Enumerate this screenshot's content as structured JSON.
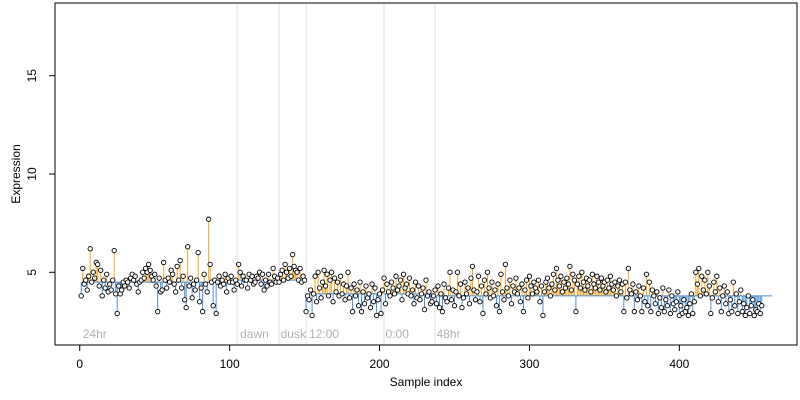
{
  "chart_data": {
    "type": "scatter",
    "title": "",
    "xlabel": "Sample index",
    "ylabel": "Expression",
    "xlim": [
      -16.5,
      478.5
    ],
    "ylim": [
      1.3,
      18.7
    ],
    "x_ticks": [
      0,
      100,
      200,
      300,
      400
    ],
    "y_ticks": [
      5,
      10,
      15
    ],
    "grid": false,
    "legend": "none",
    "colors": {
      "above_stem": "#f5a623",
      "below_stem": "#4a90d9",
      "point_edge": "#000000",
      "point_fill": "#ffffff",
      "divider": "#e0e0e0",
      "annotation": "#b0b0b0"
    },
    "annotations": [
      {
        "label": "24hr",
        "x": 2
      },
      {
        "label": "dawn",
        "x": 107
      },
      {
        "label": "dusk",
        "x": 134
      },
      {
        "label": "12:00",
        "x": 153
      },
      {
        "label": "0:00",
        "x": 204
      },
      {
        "label": "48hr",
        "x": 238
      }
    ],
    "vertical_lines": [
      105,
      133,
      151,
      203,
      237
    ],
    "segments": [
      {
        "start": 1,
        "end": 104,
        "level": 4.5
      },
      {
        "start": 105,
        "end": 132,
        "level": 4.6
      },
      {
        "start": 133,
        "end": 150,
        "level": 4.6
      },
      {
        "start": 151,
        "end": 202,
        "level": 3.9
      },
      {
        "start": 203,
        "end": 236,
        "level": 3.9
      },
      {
        "start": 237,
        "end": 462,
        "level": 3.8
      }
    ],
    "series": [
      {
        "values": [
          3.8,
          5.2,
          4.4,
          4.6,
          4.1,
          4.8,
          6.2,
          4.5,
          5.0,
          4.7,
          5.5,
          5.4,
          4.3,
          5.1,
          3.8,
          4.6,
          4.2,
          4.9,
          4.0,
          4.4,
          4.1,
          4.6,
          6.1,
          3.9,
          2.9,
          4.3,
          3.9,
          4.1,
          4.5,
          4.3,
          4.6,
          4.5,
          4.2,
          4.7,
          4.9,
          4.6,
          4.8,
          4.4,
          4.0,
          4.5,
          4.6,
          5.0,
          4.7,
          5.2,
          5.0,
          5.4,
          5.1,
          4.8,
          4.6,
          4.9,
          4.3,
          3.0,
          4.7,
          4.0,
          4.1,
          5.5,
          4.6,
          4.2,
          4.7,
          4.5,
          5.1,
          4.9,
          4.4,
          4.0,
          5.3,
          4.6,
          5.6,
          4.2,
          4.8,
          3.6,
          3.2,
          6.3,
          4.3,
          4.7,
          3.7,
          4.4,
          4.1,
          4.6,
          6.0,
          3.5,
          4.2,
          3.0,
          4.9,
          4.4,
          4.0,
          7.7,
          5.4,
          4.5,
          3.3,
          4.6,
          2.9,
          4.5,
          4.8,
          4.3,
          4.6,
          4.4,
          4.9,
          4.0,
          4.7,
          4.5,
          4.8,
          4.5,
          4.1,
          4.6,
          4.4,
          5.4,
          5.0,
          4.3,
          4.8,
          4.6,
          4.6,
          4.2,
          4.9,
          4.6,
          4.8,
          4.4,
          4.5,
          4.8,
          4.7,
          5.0,
          4.4,
          4.9,
          4.1,
          4.6,
          4.3,
          4.9,
          4.5,
          4.4,
          5.2,
          4.8,
          4.5,
          4.7,
          4.5,
          4.9,
          5.1,
          4.6,
          5.4,
          5.0,
          4.7,
          5.2,
          4.8,
          5.9,
          5.3,
          5.1,
          5.0,
          4.6,
          5.2,
          4.5,
          4.8,
          4.6,
          3.0,
          3.8,
          3.6,
          4.1,
          2.8,
          3.9,
          4.8,
          3.5,
          5.0,
          4.2,
          3.7,
          4.5,
          5.1,
          4.3,
          4.9,
          3.8,
          4.6,
          5.0,
          3.5,
          4.7,
          4.0,
          4.5,
          3.8,
          4.8,
          3.9,
          4.4,
          3.6,
          4.3,
          5.0,
          3.7,
          4.2,
          3.0,
          4.4,
          3.8,
          4.1,
          3.3,
          4.5,
          3.0,
          4.0,
          3.4,
          4.3,
          3.7,
          3.9,
          3.2,
          4.4,
          3.5,
          4.2,
          2.8,
          3.6,
          3.9,
          2.9,
          4.1,
          4.7,
          3.4,
          4.4,
          4.0,
          3.8,
          4.5,
          4.2,
          3.9,
          4.8,
          4.1,
          4.3,
          4.6,
          3.6,
          4.9,
          4.2,
          4.4,
          3.9,
          4.7,
          3.8,
          4.1,
          3.4,
          4.5,
          3.7,
          4.3,
          3.6,
          3.9,
          4.2,
          3.1,
          4.6,
          3.8,
          4.0,
          3.4,
          3.5,
          3.8,
          4.1,
          3.4,
          4.3,
          3.2,
          3.9,
          3.0,
          4.4,
          3.7,
          3.5,
          4.2,
          5.0,
          3.6,
          4.1,
          3.3,
          4.0,
          5.0,
          3.8,
          4.4,
          3.2,
          3.7,
          4.5,
          3.9,
          4.2,
          3.4,
          4.7,
          5.3,
          4.1,
          3.6,
          4.0,
          4.8,
          3.5,
          4.3,
          2.9,
          4.6,
          3.9,
          5.0,
          4.2,
          3.7,
          4.5,
          3.8,
          4.1,
          3.3,
          4.4,
          3.0,
          4.9,
          4.0,
          3.6,
          5.4,
          4.2,
          3.8,
          4.6,
          3.4,
          4.3,
          4.0,
          4.7,
          3.9,
          4.2,
          3.5,
          4.4,
          3.0,
          4.1,
          4.6,
          3.7,
          4.8,
          4.3,
          3.9,
          4.5,
          4.2,
          4.0,
          4.6,
          3.5,
          4.3,
          2.8,
          4.0,
          4.5,
          4.7,
          4.2,
          3.8,
          4.4,
          4.9,
          4.1,
          5.2,
          4.6,
          4.3,
          4.8,
          4.0,
          4.5,
          4.2,
          4.7,
          4.4,
          5.3,
          4.1,
          4.9,
          4.6,
          3.0,
          4.4,
          4.8,
          4.2,
          5.0,
          4.5,
          4.1,
          4.7,
          4.3,
          4.6,
          4.0,
          4.9,
          4.4,
          4.2,
          4.8,
          4.5,
          4.1,
          4.7,
          4.3,
          4.5,
          4.0,
          4.6,
          4.2,
          4.8,
          4.4,
          4.1,
          4.5,
          3.8,
          4.3,
          4.6,
          4.0,
          4.4,
          3.0,
          4.5,
          3.7,
          5.2,
          4.1,
          3.9,
          4.4,
          3.0,
          4.0,
          3.6,
          4.3,
          3.8,
          3.0,
          4.2,
          3.5,
          4.9,
          3.3,
          4.5,
          3.0,
          4.1,
          3.8,
          3.4,
          4.0,
          2.9,
          3.7,
          3.2,
          4.2,
          3.0,
          3.6,
          3.3,
          4.1,
          2.9,
          3.8,
          3.4,
          3.1,
          3.5,
          4.0,
          2.8,
          3.3,
          2.9,
          3.6,
          3.0,
          3.2,
          2.8,
          3.4,
          3.9,
          2.9,
          3.5,
          5.0,
          4.4,
          5.2,
          3.8,
          4.8,
          4.1,
          4.6,
          3.9,
          5.0,
          4.3,
          2.9,
          3.7,
          4.5,
          4.0,
          4.8,
          3.5,
          4.2,
          3.0,
          3.8,
          4.3,
          3.4,
          4.0,
          2.9,
          3.6,
          3.0,
          4.5,
          3.3,
          3.9,
          2.9,
          3.5,
          4.1,
          3.0,
          3.4,
          2.8,
          3.2,
          3.8,
          2.9,
          3.3,
          3.6,
          2.8,
          3.1,
          3.0,
          3.4,
          2.9,
          3.3
        ]
      }
    ]
  }
}
